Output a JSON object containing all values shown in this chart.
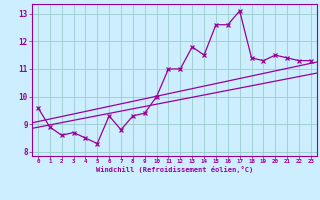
{
  "x": [
    0,
    1,
    2,
    3,
    4,
    5,
    6,
    7,
    8,
    9,
    10,
    11,
    12,
    13,
    14,
    15,
    16,
    17,
    18,
    19,
    20,
    21,
    22,
    23
  ],
  "y_main": [
    9.6,
    8.9,
    8.6,
    8.7,
    8.5,
    8.3,
    9.3,
    8.8,
    9.3,
    9.4,
    10.0,
    11.0,
    11.0,
    11.8,
    11.5,
    12.6,
    12.6,
    13.1,
    11.4,
    11.3,
    11.5,
    11.4,
    11.3,
    11.3
  ],
  "line1_start": 9.05,
  "line1_end": 11.25,
  "line2_start": 8.85,
  "line2_end": 10.85,
  "line_color": "#990099",
  "bg_color": "#cceeff",
  "grid_color": "#99cccc",
  "xlabel": "Windchill (Refroidissement éolien,°C)",
  "xlim": [
    -0.5,
    23.5
  ],
  "ylim": [
    7.85,
    13.35
  ],
  "yticks": [
    8,
    9,
    10,
    11,
    12,
    13
  ],
  "xticks": [
    0,
    1,
    2,
    3,
    4,
    5,
    6,
    7,
    8,
    9,
    10,
    11,
    12,
    13,
    14,
    15,
    16,
    17,
    18,
    19,
    20,
    21,
    22,
    23
  ]
}
